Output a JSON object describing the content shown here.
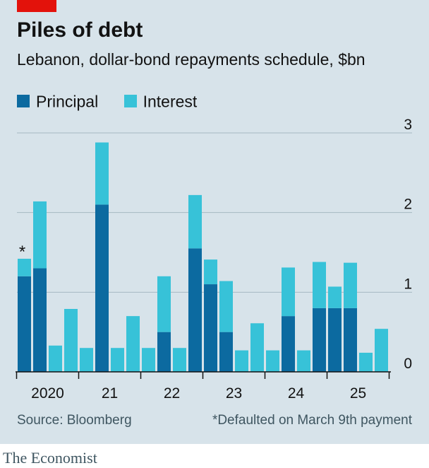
{
  "header": {
    "title": "Piles of debt",
    "subtitle": "Lebanon, dollar-bond repayments schedule, $bn"
  },
  "legend": [
    {
      "label": "Principal",
      "color": "#0c6aa0"
    },
    {
      "label": "Interest",
      "color": "#37c2d8"
    }
  ],
  "chart_data": {
    "type": "bar",
    "stacked": true,
    "series": [
      {
        "name": "Principal",
        "color": "#0c6aa0",
        "values": [
          1.2,
          1.3,
          0,
          0,
          0,
          2.1,
          0,
          0,
          0,
          0.5,
          0,
          1.55,
          1.1,
          0.5,
          0,
          0,
          0,
          0.7,
          0,
          0.8,
          0.8,
          0.8,
          0,
          0
        ]
      },
      {
        "name": "Interest",
        "color": "#37c2d8",
        "values": [
          0.22,
          0.84,
          0.33,
          0.79,
          0.3,
          0.78,
          0.3,
          0.7,
          0.3,
          0.7,
          0.3,
          0.67,
          0.31,
          0.64,
          0.27,
          0.61,
          0.27,
          0.61,
          0.27,
          0.58,
          0.27,
          0.57,
          0.24,
          0.54
        ]
      }
    ],
    "x_tick_labels": [
      "2020",
      "21",
      "22",
      "23",
      "24",
      "25"
    ],
    "y_ticks": [
      0,
      1,
      2,
      3
    ],
    "ylim": [
      0,
      3
    ],
    "annotation": {
      "text": "*",
      "bar_index": 0
    },
    "grid": true,
    "legend_position": "top-left"
  },
  "footer": {
    "source": "Source: Bloomberg",
    "footnote": "*Defaulted on March 9th payment",
    "brand": "The Economist"
  }
}
